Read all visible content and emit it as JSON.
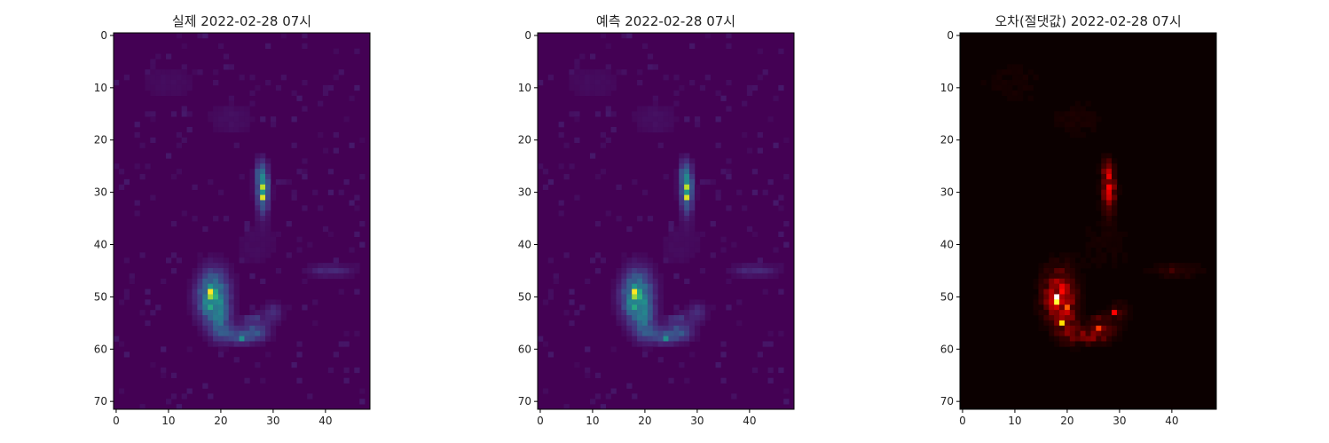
{
  "colors": {
    "background": "#ffffff",
    "axis": "#000000",
    "viridis_low": "#440154",
    "viridis_high": "#fde725",
    "hot_low": "#0b0000",
    "hot_high": "#ffffff"
  },
  "chart_data": [
    {
      "type": "heatmap",
      "title": "실제 2022-02-28 07시",
      "colormap": "viridis",
      "rows": 72,
      "cols": 49,
      "xlabel": "",
      "ylabel": "",
      "xticks": [
        0,
        10,
        20,
        30,
        40
      ],
      "yticks": [
        0,
        10,
        20,
        30,
        40,
        50,
        60,
        70
      ],
      "value_range": [
        0,
        1
      ],
      "hotspots": [
        {
          "row": 49,
          "col": 18,
          "value": 1.0
        },
        {
          "row": 50,
          "col": 18,
          "value": 0.85
        },
        {
          "row": 29,
          "col": 28,
          "value": 0.9
        },
        {
          "row": 31,
          "col": 28,
          "value": 0.95
        },
        {
          "row": 52,
          "col": 18,
          "value": 0.6
        },
        {
          "row": 58,
          "col": 24,
          "value": 0.5
        }
      ]
    },
    {
      "type": "heatmap",
      "title": "예측 2022-02-28 07시",
      "colormap": "viridis",
      "rows": 72,
      "cols": 49,
      "xlabel": "",
      "ylabel": "",
      "xticks": [
        0,
        10,
        20,
        30,
        40
      ],
      "yticks": [
        0,
        10,
        20,
        30,
        40,
        50,
        60,
        70
      ],
      "value_range": [
        0,
        1
      ],
      "hotspots": [
        {
          "row": 49,
          "col": 18,
          "value": 1.0
        },
        {
          "row": 50,
          "col": 18,
          "value": 0.85
        },
        {
          "row": 29,
          "col": 28,
          "value": 0.9
        },
        {
          "row": 31,
          "col": 28,
          "value": 0.95
        },
        {
          "row": 52,
          "col": 18,
          "value": 0.6
        },
        {
          "row": 58,
          "col": 24,
          "value": 0.5
        }
      ]
    },
    {
      "type": "heatmap",
      "title": "오차(절댓값) 2022-02-28 07시",
      "colormap": "hot",
      "rows": 72,
      "cols": 49,
      "xlabel": "",
      "ylabel": "",
      "xticks": [
        0,
        10,
        20,
        30,
        40
      ],
      "yticks": [
        0,
        10,
        20,
        30,
        40,
        50,
        60,
        70
      ],
      "value_range": [
        0,
        1
      ],
      "hotspots": [
        {
          "row": 50,
          "col": 18,
          "value": 1.0
        },
        {
          "row": 51,
          "col": 18,
          "value": 0.8
        },
        {
          "row": 55,
          "col": 19,
          "value": 0.7
        },
        {
          "row": 52,
          "col": 20,
          "value": 0.5
        },
        {
          "row": 56,
          "col": 26,
          "value": 0.45
        },
        {
          "row": 53,
          "col": 29,
          "value": 0.35
        }
      ]
    }
  ]
}
